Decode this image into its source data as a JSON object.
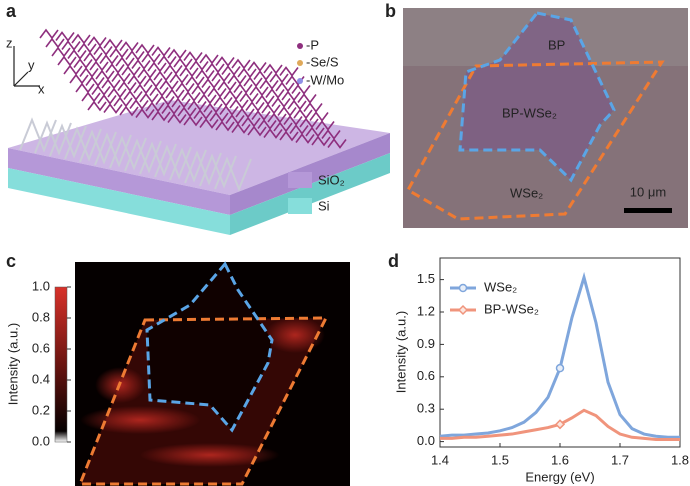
{
  "panel_a": {
    "label": "a",
    "legend": [
      "-P",
      "-Se/S",
      "-W/Mo"
    ],
    "axes": [
      "z",
      "y",
      "x"
    ],
    "layers": [
      "SiO₂",
      "Si"
    ]
  },
  "panel_b": {
    "label": "b",
    "regions": [
      "BP",
      "BP-WSe₂",
      "WSe₂"
    ],
    "scale_bar": "10 μm"
  },
  "panel_c": {
    "label": "c",
    "colorbar": {
      "label": "Intensity (a.u.)",
      "ylim": [
        0,
        1
      ],
      "ticks": [
        {
          "value": 0,
          "label": "0.0"
        },
        0.2,
        0.4,
        0.6,
        0.8,
        {
          "value": 1,
          "label": "1.0"
        }
      ]
    }
  },
  "panel_d": {
    "label": "d"
  },
  "chart_data": {
    "type": "line",
    "xlabel": "Energy (eV)",
    "ylabel": "Intensity (a.u.)",
    "x": [
      1.4,
      1.42,
      1.44,
      1.46,
      1.48,
      1.5,
      1.52,
      1.54,
      1.56,
      1.58,
      1.6,
      1.62,
      1.64,
      1.66,
      1.68,
      1.7,
      1.72,
      1.74,
      1.76,
      1.78,
      1.8
    ],
    "series": [
      {
        "name": "WSe₂",
        "color": "#7fa6dc",
        "values": [
          0.05,
          0.06,
          0.06,
          0.07,
          0.08,
          0.1,
          0.13,
          0.18,
          0.27,
          0.41,
          0.68,
          1.15,
          1.52,
          1.1,
          0.55,
          0.25,
          0.12,
          0.07,
          0.05,
          0.04,
          0.04
        ]
      },
      {
        "name": "BP-WSe₂",
        "color": "#f0947c",
        "values": [
          0.03,
          0.03,
          0.04,
          0.04,
          0.05,
          0.06,
          0.07,
          0.09,
          0.11,
          0.13,
          0.16,
          0.22,
          0.29,
          0.24,
          0.14,
          0.07,
          0.04,
          0.03,
          0.02,
          0.02,
          0.02
        ]
      }
    ],
    "xlim": [
      1.4,
      1.8
    ],
    "ylim": [
      -0.05,
      1.7
    ],
    "xticks": [
      1.4,
      1.5,
      1.6,
      1.7,
      1.8
    ],
    "yticks": [
      {
        "value": 0,
        "label": "0.0"
      },
      0.3,
      0.6,
      0.9,
      1.2,
      1.5
    ]
  }
}
